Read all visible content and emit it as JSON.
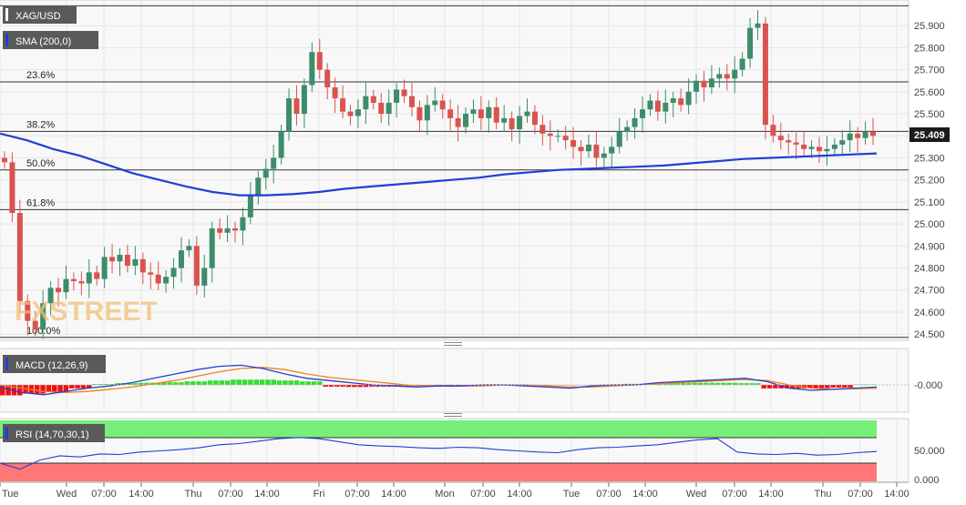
{
  "instrument": "XAG/USD",
  "indicators": {
    "sma": "SMA (200,0)",
    "macd": "MACD (12,26,9)",
    "rsi": "RSI (14,70,30,1)"
  },
  "colors": {
    "bull": "#3d8c6a",
    "bear": "#d9534f",
    "sma": "#1f3fd6",
    "macd_line": "#2a3fcc",
    "signal_line": "#f08020",
    "hist_pos": "#33dd33",
    "hist_neg": "#ee1111",
    "rsi_line": "#1f3fd6",
    "rsi_over": "#77ee77",
    "rsi_under": "#ff7777",
    "price_tag": "#1a1a1a"
  },
  "chart_data": {
    "type": "candlestick",
    "x_labels": [
      "Tue",
      "Wed",
      "07:00",
      "14:00",
      "Thu",
      "07:00",
      "14:00",
      "Fri",
      "07:00",
      "14:00",
      "Mon",
      "07:00",
      "14:00",
      "Tue",
      "07:00",
      "14:00",
      "Wed",
      "07:00",
      "14:00",
      "Thu",
      "07:00",
      "14:00"
    ],
    "price_ticks": [
      "25.900",
      "25.800",
      "25.700",
      "25.600",
      "25.500",
      "25.400",
      "25.300",
      "25.200",
      "25.100",
      "25.000",
      "24.900",
      "24.800",
      "24.700",
      "24.600",
      "24.500"
    ],
    "ylim": [
      24.48,
      26.0
    ],
    "current_price": "25.409",
    "current_value": 25.409,
    "fib_levels": [
      {
        "label": "23.6%",
        "value": 25.645
      },
      {
        "label": "38.2%",
        "value": 25.42
      },
      {
        "label": "50.0%",
        "value": 25.245
      },
      {
        "label": "61.8%",
        "value": 25.065
      },
      {
        "label": "100.0%",
        "value": 24.485
      }
    ],
    "series_closes": [
      25.28,
      25.05,
      24.65,
      24.56,
      24.52,
      24.64,
      24.71,
      24.69,
      24.75,
      24.74,
      24.73,
      24.78,
      24.75,
      24.85,
      24.83,
      24.86,
      24.81,
      24.84,
      24.78,
      24.77,
      24.73,
      24.76,
      24.8,
      24.88,
      24.9,
      24.72,
      24.8,
      24.98,
      24.96,
      24.98,
      24.97,
      25.03,
      25.13,
      25.21,
      25.25,
      25.3,
      25.42,
      25.57,
      25.5,
      25.63,
      25.78,
      25.7,
      25.62,
      25.57,
      25.51,
      25.49,
      25.52,
      25.58,
      25.55,
      25.5,
      25.55,
      25.61,
      25.58,
      25.53,
      25.47,
      25.54,
      25.56,
      25.52,
      25.48,
      25.44,
      25.5,
      25.52,
      25.48,
      25.53,
      25.46,
      25.48,
      25.43,
      25.49,
      25.51,
      25.45,
      25.41,
      25.4,
      25.4,
      25.38,
      25.35,
      25.33,
      25.36,
      25.3,
      25.32,
      25.35,
      25.42,
      25.44,
      25.48,
      25.52,
      25.56,
      25.51,
      25.55,
      25.57,
      25.54,
      25.6,
      25.65,
      25.62,
      25.66,
      25.68,
      25.66,
      25.7,
      25.75,
      25.89,
      25.91,
      25.45,
      25.4,
      25.38,
      25.37,
      25.36,
      25.34,
      25.35,
      25.33,
      25.34,
      25.36,
      25.38,
      25.41,
      25.39,
      25.42,
      25.4
    ],
    "sma200": [
      25.41,
      25.38,
      25.34,
      25.31,
      25.27,
      25.23,
      25.2,
      25.17,
      25.145,
      25.13,
      25.13,
      25.135,
      25.145,
      25.16,
      25.17,
      25.18,
      25.19,
      25.2,
      25.21,
      25.225,
      25.235,
      25.245,
      25.25,
      25.255,
      25.26,
      25.265,
      25.275,
      25.285,
      25.295,
      25.3,
      25.305,
      25.31,
      25.315,
      25.32
    ],
    "macd_hist": [
      -0.06,
      -0.05,
      -0.04,
      -0.02,
      0.005,
      0.01,
      0.012,
      0.015,
      0.02,
      0.025,
      0.03,
      0.03,
      0.025,
      0.02,
      -0.01,
      -0.012,
      -0.01,
      -0.008,
      -0.006,
      -0.005,
      -0.004,
      -0.003,
      -0.003,
      -0.002,
      -0.002,
      -0.001,
      0.002,
      0.006,
      0.008,
      0.01,
      0.012,
      0.012,
      0.01,
      -0.02,
      -0.02,
      -0.018,
      -0.015,
      0.003
    ],
    "macd_line": [
      -0.02,
      -0.07,
      -0.09,
      -0.06,
      -0.03,
      -0.01,
      0.02,
      0.06,
      0.1,
      0.14,
      0.17,
      0.18,
      0.15,
      0.1,
      0.06,
      0.04,
      0.02,
      0.0,
      -0.01,
      -0.02,
      -0.01,
      -0.01,
      0.0,
      0.0,
      -0.01,
      -0.02,
      -0.03,
      -0.01,
      0.0,
      0.0,
      0.02,
      0.03,
      0.04,
      0.05,
      0.06,
      0.03,
      -0.03,
      -0.05,
      -0.04,
      -0.03,
      -0.02
    ],
    "signal_line": [
      0.0,
      -0.03,
      -0.06,
      -0.07,
      -0.06,
      -0.04,
      -0.02,
      0.01,
      0.04,
      0.08,
      0.12,
      0.15,
      0.16,
      0.14,
      0.1,
      0.07,
      0.05,
      0.03,
      0.01,
      -0.01,
      -0.01,
      -0.01,
      -0.01,
      0.0,
      0.0,
      -0.01,
      -0.02,
      -0.02,
      -0.01,
      0.0,
      0.01,
      0.02,
      0.03,
      0.04,
      0.05,
      0.04,
      0.0,
      -0.03,
      -0.04,
      -0.035,
      -0.03
    ],
    "macd_ticks": [
      "-0.000"
    ],
    "rsi": [
      30,
      20,
      35,
      42,
      40,
      45,
      44,
      48,
      50,
      52,
      55,
      60,
      62,
      66,
      70,
      72,
      70,
      65,
      60,
      58,
      57,
      55,
      54,
      56,
      55,
      52,
      50,
      48,
      47,
      52,
      55,
      56,
      58,
      60,
      64,
      68,
      70,
      48,
      45,
      44,
      46,
      43,
      44,
      47,
      49
    ],
    "rsi_levels": [
      70,
      30
    ],
    "rsi_ticks": [
      "50.000",
      "0.000"
    ]
  }
}
